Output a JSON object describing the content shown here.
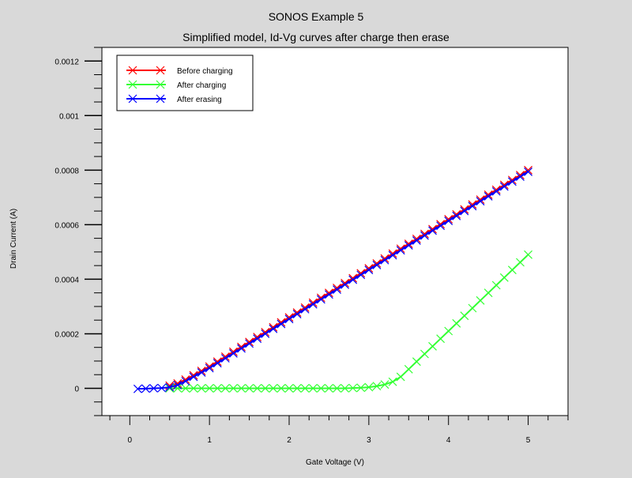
{
  "chart_data": {
    "type": "line",
    "title": "SONOS Example 5",
    "subtitle": "Simplified model,  Id-Vg curves after charge then erase",
    "xlabel": "Gate Voltage (V)",
    "ylabel": "Drain Current (A)",
    "xlim": [
      -0.35,
      5.5
    ],
    "ylim": [
      -0.0001,
      0.00125
    ],
    "x_ticks": [
      0,
      1,
      2,
      3,
      4,
      5
    ],
    "x_tick_labels": [
      "0",
      "1",
      "2",
      "3",
      "4",
      "5"
    ],
    "y_ticks": [
      0,
      0.0002,
      0.0004,
      0.0006,
      0.0008,
      0.001,
      0.0012
    ],
    "y_tick_labels": [
      "0",
      "0.0002",
      "0.0004",
      "0.0006",
      "0.0008",
      "0.001",
      "0.0012"
    ],
    "grid": false,
    "legend_position": "top-left",
    "series": [
      {
        "name": "Before charging",
        "color": "#ff0000",
        "marker": "x",
        "x": [
          0.5,
          0.6,
          0.7,
          0.8,
          0.9,
          1.0,
          1.1,
          1.2,
          1.3,
          1.4,
          1.5,
          1.6,
          1.7,
          1.8,
          1.9,
          2.0,
          2.1,
          2.2,
          2.3,
          2.4,
          2.5,
          2.6,
          2.7,
          2.8,
          2.9,
          3.0,
          3.1,
          3.2,
          3.3,
          3.4,
          3.5,
          3.6,
          3.7,
          3.8,
          3.9,
          4.0,
          4.1,
          4.2,
          4.3,
          4.4,
          4.5,
          4.6,
          4.7,
          4.8,
          4.9,
          5.0
        ],
        "y": [
          1e-05,
          1.8e-05,
          3.2e-05,
          4.8e-05,
          6.4e-05,
          8e-05,
          9.8e-05,
          0.000116,
          0.000134,
          0.000152,
          0.00017,
          0.000188,
          0.000206,
          0.000224,
          0.000242,
          0.00026,
          0.000278,
          0.000296,
          0.000314,
          0.000332,
          0.00035,
          0.000368,
          0.000386,
          0.000404,
          0.000422,
          0.00044,
          0.000458,
          0.000476,
          0.000494,
          0.000512,
          0.00053,
          0.000548,
          0.000566,
          0.000584,
          0.000602,
          0.00062,
          0.000638,
          0.000656,
          0.000674,
          0.000692,
          0.00071,
          0.000728,
          0.000746,
          0.000764,
          0.000782,
          0.0008
        ]
      },
      {
        "name": "After charging",
        "color": "#33ff33",
        "marker": "x",
        "x": [
          0.5,
          0.6,
          0.7,
          0.8,
          0.9,
          1.0,
          1.1,
          1.2,
          1.3,
          1.4,
          1.5,
          1.6,
          1.7,
          1.8,
          1.9,
          2.0,
          2.1,
          2.2,
          2.3,
          2.4,
          2.5,
          2.6,
          2.7,
          2.8,
          2.9,
          3.0,
          3.1,
          3.2,
          3.3,
          3.4,
          3.5,
          3.6,
          3.7,
          3.8,
          3.9,
          4.0,
          4.1,
          4.2,
          4.3,
          4.4,
          4.5,
          4.6,
          4.7,
          4.8,
          4.9,
          5.0
        ],
        "y": [
          0,
          0,
          0,
          0,
          0,
          0,
          0,
          0,
          0,
          0,
          0,
          0,
          0,
          0,
          0,
          0,
          0,
          0,
          0,
          0,
          0,
          0,
          0,
          1e-06,
          2e-06,
          4e-06,
          8e-06,
          1.4e-05,
          2.4e-05,
          4.2e-05,
          7e-05,
          9.8e-05,
          0.000126,
          0.000154,
          0.000182,
          0.00021,
          0.000238,
          0.000266,
          0.000294,
          0.000322,
          0.00035,
          0.000378,
          0.000406,
          0.000434,
          0.000462,
          0.00049
        ]
      },
      {
        "name": "After erasing",
        "color": "#0000ff",
        "marker": "x",
        "x": [
          0.1,
          0.2,
          0.3,
          0.4,
          0.5,
          0.6,
          0.7,
          0.8,
          0.9,
          1.0,
          1.1,
          1.2,
          1.3,
          1.4,
          1.5,
          1.6,
          1.7,
          1.8,
          1.9,
          2.0,
          2.1,
          2.2,
          2.3,
          2.4,
          2.5,
          2.6,
          2.7,
          2.8,
          2.9,
          3.0,
          3.1,
          3.2,
          3.3,
          3.4,
          3.5,
          3.6,
          3.7,
          3.8,
          3.9,
          4.0,
          4.1,
          4.2,
          4.3,
          4.4,
          4.5,
          4.6,
          4.7,
          4.8,
          4.9,
          5.0
        ],
        "y": [
          -2e-06,
          -1e-06,
          0,
          1e-06,
          4e-06,
          1.2e-05,
          2.6e-05,
          4.2e-05,
          5.8e-05,
          7.4e-05,
          9.2e-05,
          0.00011,
          0.000128,
          0.000146,
          0.000164,
          0.000182,
          0.0002,
          0.000218,
          0.000236,
          0.000254,
          0.000272,
          0.00029,
          0.000308,
          0.000326,
          0.000344,
          0.000362,
          0.00038,
          0.000398,
          0.000416,
          0.000434,
          0.000452,
          0.00047,
          0.000488,
          0.000506,
          0.000524,
          0.000542,
          0.00056,
          0.000578,
          0.000596,
          0.000614,
          0.000632,
          0.00065,
          0.000668,
          0.000686,
          0.000704,
          0.000722,
          0.00074,
          0.000758,
          0.000776,
          0.000794
        ]
      }
    ]
  }
}
